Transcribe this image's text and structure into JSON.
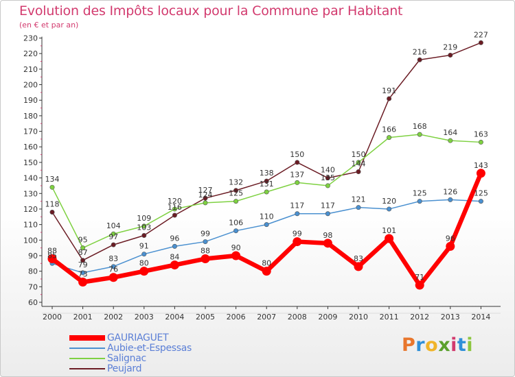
{
  "header": {
    "title": "Evolution des Impôts locaux pour la Commune par Habitant",
    "subtitle": "(en € et par an)"
  },
  "brand": {
    "text": "Proxiti",
    "letter_colors": [
      "#e8762c",
      "#2f8fd8",
      "#f0b429",
      "#5aa02c",
      "#d23a6e",
      "#2f8fd8",
      "#8cc63f"
    ]
  },
  "chart_data": {
    "type": "line",
    "x": [
      "2000",
      "2001",
      "2002",
      "2003",
      "2004",
      "2005",
      "2006",
      "2007",
      "2008",
      "2009",
      "2010",
      "2011",
      "2012",
      "2013",
      "2014"
    ],
    "yticks": [
      60,
      70,
      80,
      90,
      100,
      110,
      120,
      130,
      140,
      150,
      160,
      170,
      180,
      190,
      200,
      210,
      220,
      230
    ],
    "ylim": [
      60,
      230
    ],
    "grid": false,
    "legend_position": "bottom-left",
    "series": [
      {
        "name": "GAURIAGUET",
        "color": "#ff0000",
        "values": [
          88,
          73,
          76,
          80,
          84,
          88,
          90,
          80,
          99,
          98,
          83,
          101,
          71,
          96,
          143
        ]
      },
      {
        "name": "Aubie-et-Espessas",
        "color": "#4a90d0",
        "values": [
          85,
          79,
          83,
          91,
          96,
          99,
          106,
          110,
          117,
          117,
          121,
          120,
          125,
          126,
          125
        ]
      },
      {
        "name": "Salignac",
        "color": "#7ed141",
        "values": [
          134,
          95,
          104,
          109,
          120,
          124,
          125,
          131,
          137,
          135,
          150,
          166,
          168,
          164,
          163
        ]
      },
      {
        "name": "Peujard",
        "color": "#6b1c24",
        "values": [
          118,
          87,
          97,
          103,
          116,
          127,
          132,
          138,
          150,
          140,
          144,
          191,
          216,
          219,
          227
        ]
      }
    ]
  }
}
